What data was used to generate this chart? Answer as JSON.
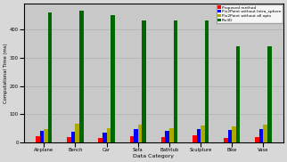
{
  "categories": [
    "Airplane",
    "Bench",
    "Car",
    "Sofa",
    "Bathtub",
    "Sculpture",
    "Bike",
    "Vase"
  ],
  "series": {
    "Proposed method": [
      22,
      18,
      17,
      22,
      18,
      25,
      17,
      20
    ],
    "Pix2Point without Intra_sphere": [
      42,
      38,
      35,
      48,
      40,
      48,
      45,
      48
    ],
    "Pix2Point without all opts": [
      48,
      68,
      50,
      62,
      52,
      60,
      58,
      62
    ],
    "Pix3D": [
      460,
      465,
      450,
      430,
      430,
      430,
      340,
      340
    ]
  },
  "colors": {
    "Proposed method": "#ff0000",
    "Pix2Point without Intra_sphere": "#0000ff",
    "Pix2Point without all opts": "#aaaa00",
    "Pix3D": "#006600"
  },
  "ylabel": "Computational Time (ms)",
  "xlabel": "Data Category",
  "ylim": [
    0,
    490
  ],
  "yticks": [
    0,
    100,
    200,
    300,
    400
  ],
  "background_color": "#d8d8d8",
  "plot_bg": "#c8c8c8"
}
